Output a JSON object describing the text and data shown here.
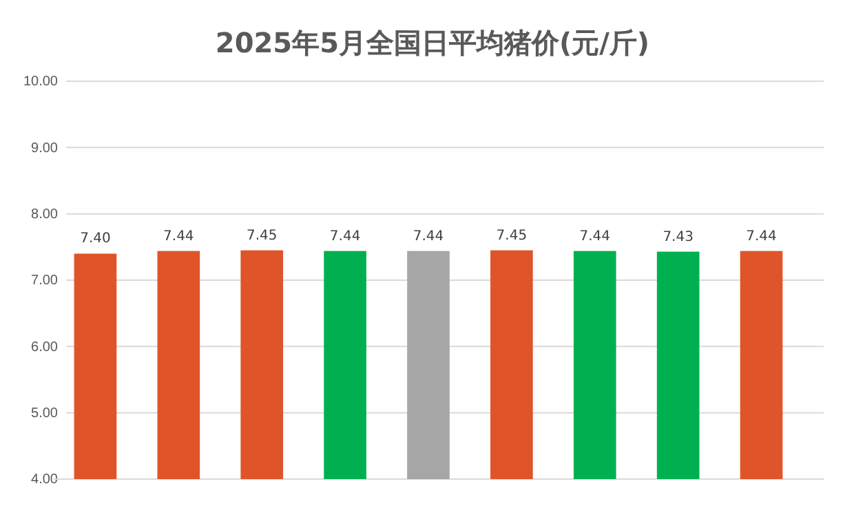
{
  "chart_data": {
    "type": "bar",
    "title": "2025年5月全国日平均猪价(元/斤)",
    "categories": [
      null,
      null,
      null,
      null,
      null,
      null,
      null,
      null,
      null
    ],
    "values": [
      7.4,
      7.44,
      7.45,
      7.44,
      7.44,
      7.45,
      7.44,
      7.43,
      7.44
    ],
    "value_labels": [
      "7.40",
      "7.44",
      "7.45",
      "7.44",
      "7.44",
      "7.45",
      "7.44",
      "7.43",
      "7.44"
    ],
    "colors": [
      "#e0542a",
      "#e0542a",
      "#e0542a",
      "#00b050",
      "#a6a6a6",
      "#e0542a",
      "#00b050",
      "#00b050",
      "#e0542a"
    ],
    "ylim": [
      4,
      10
    ],
    "yticks": [
      {
        "value": 4,
        "label": "4.00"
      },
      {
        "value": 5,
        "label": "5.00"
      },
      {
        "value": 6,
        "label": "6.00"
      },
      {
        "value": 7,
        "label": "7.00"
      },
      {
        "value": 8,
        "label": "8.00"
      },
      {
        "value": 9,
        "label": "9.00"
      },
      {
        "value": 10,
        "label": "10.00"
      }
    ],
    "grid": "y",
    "tick_labels": "y"
  }
}
